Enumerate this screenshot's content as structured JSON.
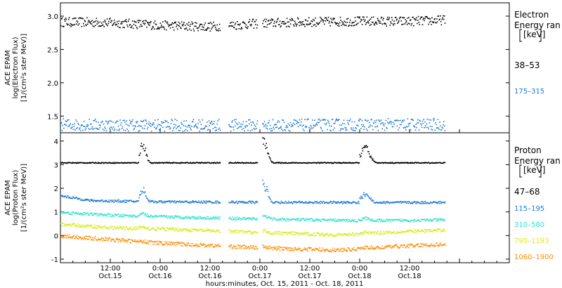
{
  "chart_data": [
    {
      "type": "scatter",
      "ylabel_lines": [
        "ACE EPAM",
        "log(Electron Flux)",
        "[1/(cm²s ster MeV)]"
      ],
      "ylim": [
        1.25,
        3.2
      ],
      "yticks": [
        1.5,
        2.0,
        2.5,
        3.0
      ],
      "ytick_labels": [
        "1.5",
        "2.0",
        "2.5",
        "3.0"
      ],
      "legend_title": [
        "Electron",
        "Energy ran",
        "[keV]"
      ],
      "series": [
        {
          "name": "38–53",
          "color": "#000000",
          "base": [
            [
              0.0,
              2.92
            ],
            [
              0.5,
              2.91
            ],
            [
              1.0,
              2.87
            ],
            [
              1.5,
              2.85
            ],
            [
              2.0,
              2.9
            ],
            [
              2.5,
              2.92
            ],
            [
              3.0,
              2.93
            ],
            [
              3.5,
              2.93
            ],
            [
              3.85,
              2.95
            ]
          ],
          "spread": 0.07
        },
        {
          "name": "175–315",
          "color": "#1f7ad4",
          "base": [
            [
              0.0,
              1.38
            ],
            [
              1.0,
              1.37
            ],
            [
              2.0,
              1.37
            ],
            [
              3.0,
              1.38
            ],
            [
              3.85,
              1.38
            ]
          ],
          "spread": 0.09
        }
      ]
    },
    {
      "type": "scatter",
      "ylabel_lines": [
        "ACE EPAM",
        "log(Proton Flux)",
        "[1/(cm²s ster MeV)]"
      ],
      "ylim": [
        -1.15,
        4.35
      ],
      "yticks": [
        -1,
        0,
        1,
        2,
        3,
        4
      ],
      "ytick_labels": [
        "-1",
        "0",
        "1",
        "2",
        "3",
        "4"
      ],
      "legend_title": [
        "Proton",
        "Energy ran",
        "[keV]"
      ],
      "series": [
        {
          "name": "47–68",
          "color": "#000000",
          "base": [
            [
              0.0,
              3.1
            ],
            [
              3.85,
              3.1
            ]
          ],
          "spread": 0.02
        },
        {
          "name": "115–195",
          "color": "#1f7ad4",
          "base": [
            [
              0.0,
              1.7
            ],
            [
              0.3,
              1.5
            ],
            [
              1.0,
              1.45
            ],
            [
              2.0,
              1.43
            ],
            [
              3.0,
              1.42
            ],
            [
              3.85,
              1.42
            ]
          ],
          "spread": 0.05
        },
        {
          "name": "310–580",
          "color": "#30e0d0",
          "base": [
            [
              0.0,
              1.0
            ],
            [
              0.5,
              0.88
            ],
            [
              1.0,
              0.82
            ],
            [
              2.0,
              0.72
            ],
            [
              3.0,
              0.65
            ],
            [
              3.85,
              0.68
            ]
          ],
          "spread": 0.06
        },
        {
          "name": "795–1193",
          "color": "#d4ec1a",
          "base": [
            [
              0.0,
              0.5
            ],
            [
              0.5,
              0.35
            ],
            [
              1.0,
              0.3
            ],
            [
              2.0,
              0.15
            ],
            [
              2.8,
              0.05
            ],
            [
              3.2,
              0.15
            ],
            [
              3.85,
              0.25
            ]
          ],
          "spread": 0.07
        },
        {
          "name": "1060–1900",
          "color": "#ff8c00",
          "base": [
            [
              0.0,
              0.0
            ],
            [
              0.5,
              -0.15
            ],
            [
              1.0,
              -0.3
            ],
            [
              2.0,
              -0.5
            ],
            [
              2.8,
              -0.6
            ],
            [
              3.3,
              -0.45
            ],
            [
              3.85,
              -0.35
            ]
          ],
          "spread": 0.08
        }
      ]
    }
  ],
  "x_axis": {
    "xlim": [
      0.0,
      4.5
    ],
    "data_end": 3.85,
    "gaps": [
      [
        1.6,
        1.68
      ],
      [
        1.97,
        2.02
      ]
    ],
    "ticks": [
      0.5,
      1.0,
      1.5,
      2.0,
      2.5,
      3.0,
      3.5,
      4.0,
      4.5
    ],
    "tick_time_labels": [
      "12:00",
      "0:00",
      "12:00",
      "0:00",
      "12:00",
      "0:00",
      "12:00"
    ],
    "tick_date_labels": [
      "Oct.15",
      "Oct.16",
      "Oct.16",
      "Oct.17",
      "Oct.17",
      "Oct.18",
      "Oct.18"
    ],
    "xlabel": "hours:minutes, Oct. 15, 2011 - Oct. 18, 2011"
  }
}
